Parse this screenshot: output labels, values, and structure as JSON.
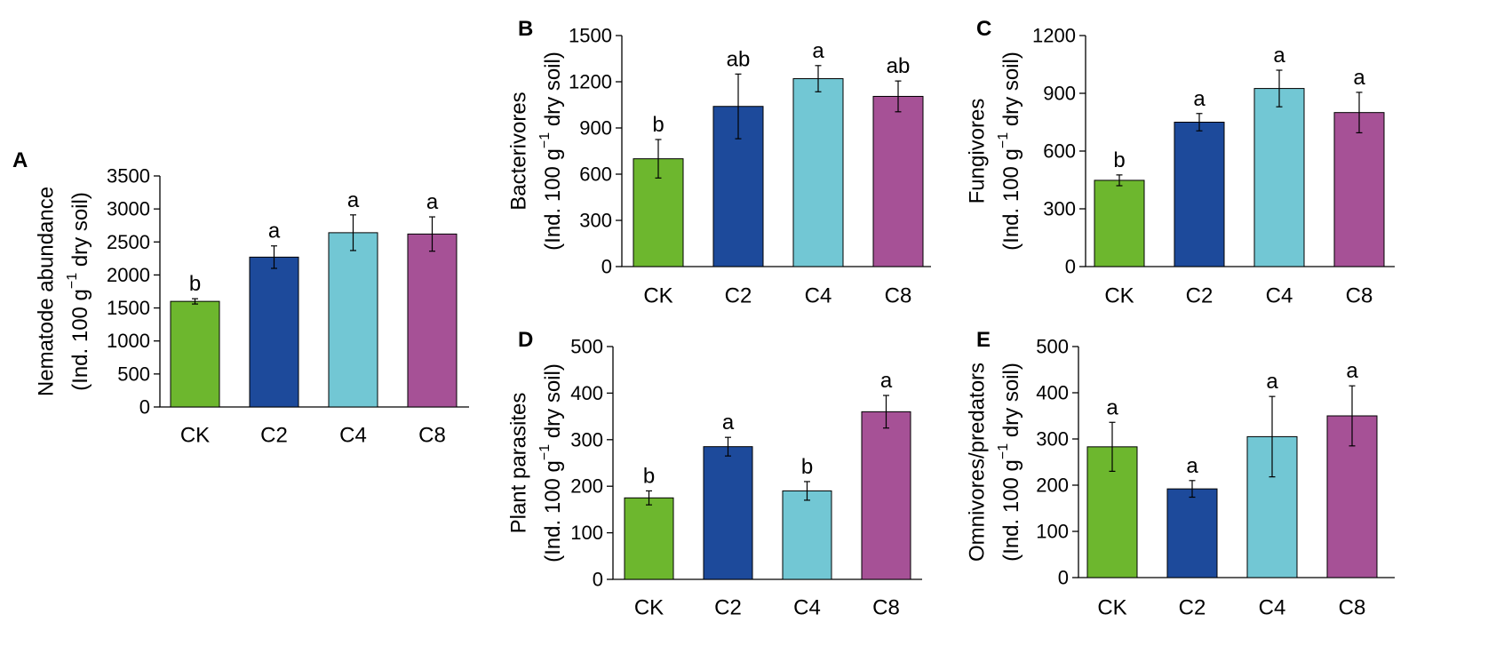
{
  "colors": {
    "CK": "#6db72e",
    "C2": "#1d4a9b",
    "C4": "#72c7d4",
    "C8": "#a65196"
  },
  "chart_data": [
    {
      "panel": "A",
      "type": "bar",
      "categories": [
        "CK",
        "C2",
        "C4",
        "C8"
      ],
      "values": [
        1600,
        2270,
        2640,
        2620
      ],
      "errors": [
        40,
        170,
        270,
        260
      ],
      "significance": [
        "b",
        "a",
        "a",
        "a"
      ],
      "ylabel": "Nematode abundance",
      "ylabel2_pre": "(Ind. 100 g",
      "ylabel2_sup": "−1",
      "ylabel2_post": " dry soil)",
      "ylim": [
        0,
        3500
      ],
      "yticks": [
        "0",
        "500",
        "1000",
        "1500",
        "2000",
        "2500",
        "3000",
        "3500"
      ]
    },
    {
      "panel": "B",
      "type": "bar",
      "categories": [
        "CK",
        "C2",
        "C4",
        "C8"
      ],
      "values": [
        700,
        1040,
        1220,
        1105
      ],
      "errors": [
        125,
        210,
        85,
        100
      ],
      "significance": [
        "b",
        "ab",
        "a",
        "ab"
      ],
      "ylabel": "Bacterivores",
      "ylabel2_pre": "(Ind. 100 g",
      "ylabel2_sup": "−1",
      "ylabel2_post": " dry soil)",
      "ylim": [
        0,
        1500
      ],
      "yticks": [
        "0",
        "300",
        "600",
        "900",
        "1200",
        "1500"
      ]
    },
    {
      "panel": "C",
      "type": "bar",
      "categories": [
        "CK",
        "C2",
        "C4",
        "C8"
      ],
      "values": [
        448,
        750,
        925,
        800
      ],
      "errors": [
        28,
        45,
        95,
        105
      ],
      "significance": [
        "b",
        "a",
        "a",
        "a"
      ],
      "ylabel": "Fungivores",
      "ylabel2_pre": "(Ind. 100 g",
      "ylabel2_sup": "−1",
      "ylabel2_post": " dry soil)",
      "ylim": [
        0,
        1200
      ],
      "yticks": [
        "0",
        "300",
        "600",
        "900",
        "1200"
      ]
    },
    {
      "panel": "D",
      "type": "bar",
      "categories": [
        "CK",
        "C2",
        "C4",
        "C8"
      ],
      "values": [
        175,
        285,
        190,
        360
      ],
      "errors": [
        15,
        20,
        20,
        35
      ],
      "significance": [
        "b",
        "a",
        "b",
        "a"
      ],
      "ylabel": "Plant parasites",
      "ylabel2_pre": "(Ind. 100 g",
      "ylabel2_sup": "−1",
      "ylabel2_post": " dry soil)",
      "ylim": [
        0,
        500
      ],
      "yticks": [
        "0",
        "100",
        "200",
        "300",
        "400",
        "500"
      ]
    },
    {
      "panel": "E",
      "type": "bar",
      "categories": [
        "CK",
        "C2",
        "C4",
        "C8"
      ],
      "values": [
        283,
        192,
        305,
        350
      ],
      "errors": [
        53,
        18,
        87,
        65
      ],
      "significance": [
        "a",
        "a",
        "a",
        "a"
      ],
      "ylabel": "Omnivores/predators",
      "ylabel2_pre": "(Ind. 100 g",
      "ylabel2_sup": "−1",
      "ylabel2_post": " dry soil)",
      "ylim": [
        0,
        500
      ],
      "yticks": [
        "0",
        "100",
        "200",
        "300",
        "400",
        "500"
      ]
    }
  ]
}
